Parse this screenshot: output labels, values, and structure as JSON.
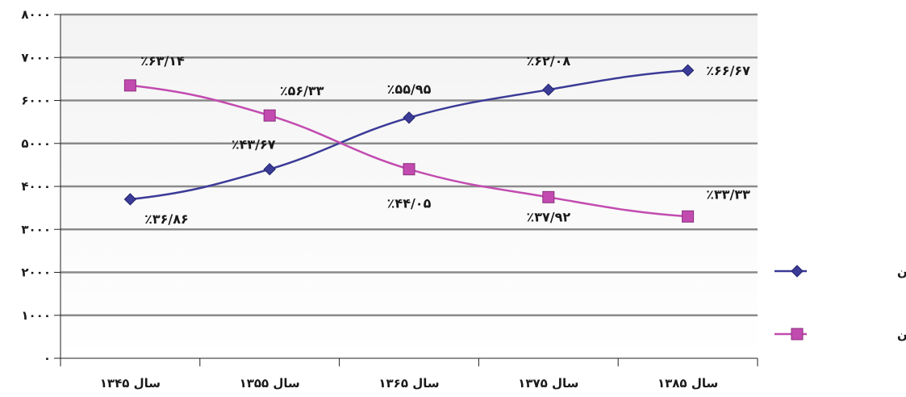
{
  "chart_data": {
    "type": "line",
    "title": "",
    "xlabel": "",
    "ylabel": "",
    "categories": [
      "سال ۱۳۴۵",
      "سال ۱۳۵۵",
      "سال ۱۳۶۵",
      "سال ۱۳۷۵",
      "سال ۱۳۸۵"
    ],
    "y_ticks": [
      "۰",
      "۱۰۰۰",
      "۲۰۰۰",
      "۳۰۰۰",
      "۴۰۰۰",
      "۵۰۰۰",
      "۶۰۰۰",
      "۷۰۰۰",
      "۸۰۰۰"
    ],
    "ylim": [
      0,
      8000
    ],
    "grid": true,
    "legend_position": "right",
    "series": [
      {
        "name": "شهر نشین",
        "color": "#3b3b98",
        "marker": "diamond",
        "values": [
          3700,
          4400,
          5600,
          6250,
          6700
        ],
        "labels": [
          "٪۳۶/۸۶",
          "٪۴۳/۶۷",
          "٪۵۵/۹۵",
          "٪۶۲/۰۸",
          "٪۶۶/۶۷"
        ]
      },
      {
        "name": "روستا نشین",
        "color": "#c24bb0",
        "marker": "square",
        "values": [
          6350,
          5650,
          4400,
          3750,
          3300
        ],
        "labels": [
          "٪۶۳/۱۴",
          "٪۵۶/۳۳",
          "٪۴۴/۰۵",
          "٪۳۷/۹۲",
          "٪۳۳/۳۳"
        ]
      }
    ]
  }
}
